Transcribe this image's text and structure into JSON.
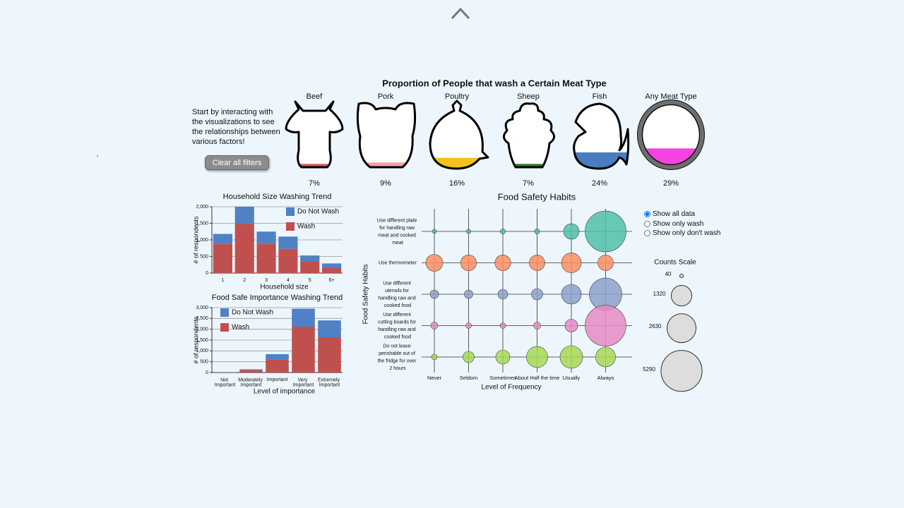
{
  "intro": "Start by interacting with the visualizations to see the relationships between various factors!",
  "clear_button": "Clear all filters",
  "radio_options": [
    "Show all data",
    "Show only wash",
    "Show only don't wash"
  ],
  "radio_selected": 0,
  "chart_data": [
    {
      "type": "pictogram",
      "title": "Proportion of People that wash a Certain Meat Type",
      "categories": [
        "Beef",
        "Pork",
        "Poultry",
        "Sheep",
        "Fish",
        "Any Meat Type"
      ],
      "values": [
        7,
        9,
        16,
        7,
        24,
        29
      ],
      "value_labels": [
        "7%",
        "9%",
        "16%",
        "7%",
        "24%",
        "29%"
      ],
      "colors": [
        "#d05a5a",
        "#f2a0a8",
        "#f2c318",
        "#2e7d32",
        "#4a7cc0",
        "#f542e0"
      ]
    },
    {
      "type": "stacked_bar",
      "title": "Household Size Washing Trend",
      "xlabel": "Household size",
      "ylabel": "# of respondents",
      "categories": [
        "1",
        "2",
        "3",
        "4",
        "5",
        "6+"
      ],
      "series": [
        {
          "name": "Do Not Wash",
          "color": "#4f81c4",
          "values": [
            300,
            520,
            370,
            370,
            180,
            130
          ]
        },
        {
          "name": "Wash",
          "color": "#c0504d",
          "values": [
            880,
            1480,
            880,
            730,
            350,
            160
          ]
        }
      ],
      "ylim": [
        0,
        2000
      ],
      "yticks": [
        0,
        500,
        {
          "value": 1000,
          "label": "1,000"
        },
        {
          "value": 1500,
          "label": "1,500"
        },
        {
          "value": 2000,
          "label": "2,000"
        }
      ],
      "grid": true,
      "legend": "top-right"
    },
    {
      "type": "stacked_bar",
      "title": "Food Safe Importance Washing Trend",
      "xlabel": "Level of importance",
      "ylabel": "# of respondents",
      "categories": [
        "Not Important",
        "Moderately Important",
        "Important",
        "Very Important",
        "Extremely Important"
      ],
      "series": [
        {
          "name": "Do Not Wash",
          "color": "#4f81c4",
          "values": [
            2,
            30,
            250,
            830,
            780
          ]
        },
        {
          "name": "Wash",
          "color": "#c0504d",
          "values": [
            8,
            120,
            600,
            2120,
            1630
          ]
        }
      ],
      "ylim": [
        0,
        3000
      ],
      "yticks": [
        0,
        500,
        {
          "value": 1000,
          "label": "1,000"
        },
        {
          "value": 1500,
          "label": "1,500"
        },
        {
          "value": 2000,
          "label": "2,000"
        },
        {
          "value": 2500,
          "label": "2,500"
        },
        {
          "value": 3000,
          "label": "3,000"
        }
      ],
      "grid": true,
      "legend": "top-left"
    },
    {
      "type": "bubble",
      "title": "Food Safety Habits",
      "xlabel": "Level of Frequency",
      "ylabel": "Food Safety Habits",
      "x_categories": [
        "Never",
        "Seldom",
        "Sometimes",
        "About Half the time",
        "Usually",
        "Always"
      ],
      "y_categories": [
        "Use different plate for handling raw meat and cooked meat",
        "Use thermometer",
        "Use different utensils for handling raw and cooked food",
        "Use different cutting boards for handling raw and cooked food",
        "Do not leave perishable out of the fridge for over 2 hours"
      ],
      "colors": [
        "#4fc1a8",
        "#fc8d62",
        "#8da0cb",
        "#e78ac3",
        "#a6d854"
      ],
      "values": [
        [
          50,
          60,
          80,
          80,
          750,
          5250
        ],
        [
          900,
          780,
          780,
          760,
          1230,
          760
        ],
        [
          225,
          225,
          306,
          400,
          1225,
          3300
        ],
        [
          156,
          100,
          100,
          156,
          506,
          5250
        ],
        [
          100,
          400,
          625,
          1400,
          1600,
          1225
        ]
      ],
      "size_legend": {
        "title": "Counts Scale",
        "values": [
          40,
          1320,
          2630,
          5290
        ]
      }
    }
  ]
}
